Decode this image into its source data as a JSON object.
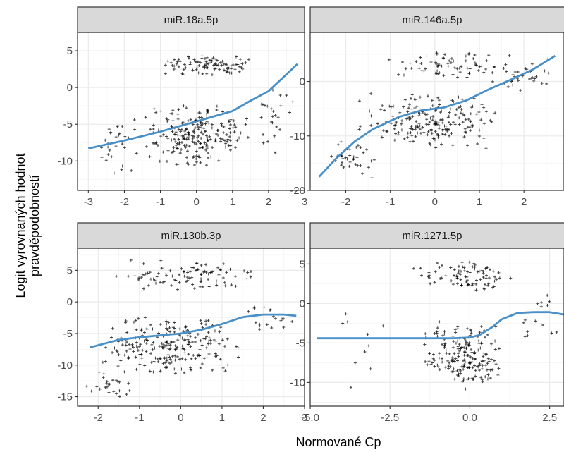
{
  "figure": {
    "xlabel": "Normované Cp",
    "ylabel_line1": "Logit vyrovnaných hodnot",
    "ylabel_line2": "pravděpodobností"
  },
  "style": {
    "panel_bg": "#ffffff",
    "grid_major": "#ebebeb",
    "grid_minor": "#f5f5f5",
    "strip_bg": "#d9d9d9",
    "border": "#333333",
    "point_color": "#000000",
    "line_color": "#4a90c8"
  },
  "chart_data": [
    {
      "type": "scatter",
      "title": "miR.18a.5p",
      "xlim": [
        -3.3,
        3.0
      ],
      "ylim": [
        -14,
        7.5
      ],
      "xticks": [
        -3,
        -2,
        -1,
        0,
        1,
        2,
        3
      ],
      "yticks": [
        -10,
        -5,
        0,
        5
      ],
      "clusters": [
        {
          "x": [
            -1.2,
            1.8
          ],
          "y": [
            1.5,
            4.5
          ],
          "n": 95
        },
        {
          "x": [
            -1.5,
            1.5
          ],
          "y": [
            -11,
            -2
          ],
          "n": 230
        },
        {
          "x": [
            -3.0,
            -1.5
          ],
          "y": [
            -13,
            -3
          ],
          "n": 30
        },
        {
          "x": [
            1.5,
            2.8
          ],
          "y": [
            -9,
            1
          ],
          "n": 25
        }
      ],
      "fit": {
        "name": "",
        "x": [
          -3.0,
          -2.0,
          -1.0,
          0.0,
          1.0,
          1.5,
          2.0,
          2.5,
          2.8
        ],
        "y": [
          -8.3,
          -7.2,
          -6.0,
          -4.6,
          -3.2,
          -1.8,
          -0.5,
          1.8,
          3.2
        ]
      }
    },
    {
      "type": "scatter",
      "title": "miR.146a.5p",
      "xlim": [
        -2.8,
        2.9
      ],
      "ylim": [
        -20,
        9
      ],
      "xticks": [
        -2,
        -1,
        0,
        1,
        2
      ],
      "yticks": [
        -20,
        -10,
        0
      ],
      "clusters": [
        {
          "x": [
            -1.2,
            2.0
          ],
          "y": [
            0.5,
            5.5
          ],
          "n": 75
        },
        {
          "x": [
            -1.8,
            1.5
          ],
          "y": [
            -13,
            -2
          ],
          "n": 210
        },
        {
          "x": [
            -2.5,
            -1.3
          ],
          "y": [
            -19,
            -10
          ],
          "n": 35
        },
        {
          "x": [
            1.2,
            2.8
          ],
          "y": [
            -3,
            5
          ],
          "n": 30
        }
      ],
      "fit": {
        "name": "",
        "x": [
          -2.6,
          -2.2,
          -1.8,
          -1.4,
          -0.8,
          -0.3,
          0.2,
          0.7,
          1.2,
          1.7,
          2.2,
          2.7
        ],
        "y": [
          -17.5,
          -14.0,
          -11.0,
          -8.8,
          -6.5,
          -5.3,
          -4.8,
          -3.5,
          -1.5,
          0.3,
          2.2,
          4.7
        ]
      }
    },
    {
      "type": "scatter",
      "title": "miR.130b.3p",
      "xlim": [
        -2.5,
        3.0
      ],
      "ylim": [
        -16.5,
        8.5
      ],
      "xticks": [
        -2,
        -1,
        0,
        1,
        2,
        3
      ],
      "yticks": [
        -15,
        -10,
        -5,
        0,
        5
      ],
      "clusters": [
        {
          "x": [
            -1.7,
            2.0
          ],
          "y": [
            1.5,
            7.0
          ],
          "n": 95
        },
        {
          "x": [
            -2.0,
            1.5
          ],
          "y": [
            -12,
            -2
          ],
          "n": 240
        },
        {
          "x": [
            -2.3,
            -1.0
          ],
          "y": [
            -16,
            -10
          ],
          "n": 25
        },
        {
          "x": [
            1.5,
            2.8
          ],
          "y": [
            -6,
            1
          ],
          "n": 20
        }
      ],
      "fit": {
        "name": "",
        "x": [
          -2.2,
          -1.5,
          -1.0,
          -0.5,
          0.0,
          0.5,
          1.0,
          1.5,
          2.0,
          2.5,
          2.8
        ],
        "y": [
          -7.2,
          -6.0,
          -5.6,
          -5.3,
          -5.0,
          -4.4,
          -3.5,
          -2.4,
          -2.0,
          -2.0,
          -2.2
        ]
      }
    },
    {
      "type": "scatter",
      "title": "miR.1271.5p",
      "xlim": [
        -5.0,
        2.95
      ],
      "ylim": [
        -13,
        7
      ],
      "xticks": [
        -5.0,
        -2.5,
        0.0,
        2.5
      ],
      "xticklabels": [
        "-5.0",
        "-2.5",
        "0.0",
        "2.5"
      ],
      "yticks": [
        -10,
        -5,
        0,
        5
      ],
      "clusters": [
        {
          "x": [
            -1.8,
            1.5
          ],
          "y": [
            1.5,
            5.5
          ],
          "n": 85
        },
        {
          "x": [
            -1.5,
            1.2
          ],
          "y": [
            -11,
            -2
          ],
          "n": 200
        },
        {
          "x": [
            -4.8,
            -2.5
          ],
          "y": [
            -12,
            2
          ],
          "n": 10
        },
        {
          "x": [
            1.5,
            2.9
          ],
          "y": [
            -6,
            3
          ],
          "n": 15
        }
      ],
      "fit": {
        "name": "",
        "x": [
          -4.8,
          -3.0,
          -1.5,
          -0.5,
          0.0,
          0.3,
          0.7,
          1.0,
          1.5,
          2.0,
          2.5,
          2.95
        ],
        "y": [
          -4.4,
          -4.4,
          -4.4,
          -4.4,
          -4.3,
          -4.0,
          -3.0,
          -2.0,
          -1.2,
          -1.1,
          -1.1,
          -1.4
        ]
      }
    }
  ]
}
